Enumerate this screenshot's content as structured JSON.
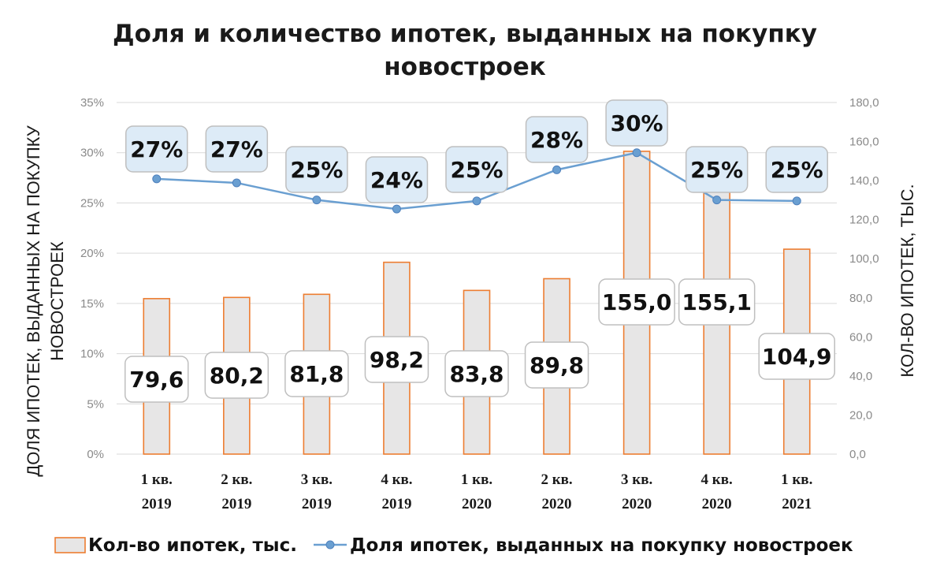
{
  "chart_data": {
    "type": "bar+line",
    "title": "Доля и количество ипотек, выданных на покупку новостроек",
    "title_lines": [
      "Доля и количество ипотек, выданных на покупку",
      "новостроек"
    ],
    "categories": [
      [
        "1 кв.",
        "2019"
      ],
      [
        "2 кв.",
        "2019"
      ],
      [
        "3 кв.",
        "2019"
      ],
      [
        "4 кв.",
        "2019"
      ],
      [
        "1 кв.",
        "2020"
      ],
      [
        "2 кв.",
        "2020"
      ],
      [
        "3 кв.",
        "2020"
      ],
      [
        "4 кв.",
        "2020"
      ],
      [
        "1 кв.",
        "2021"
      ]
    ],
    "series": [
      {
        "name": "Кол-во ипотек, тыс.",
        "type": "bar",
        "axis": "right",
        "color": "#ED7D31",
        "fill": "#E7E6E6",
        "values": [
          79.6,
          80.2,
          81.8,
          98.2,
          83.8,
          89.8,
          155.0,
          155.1,
          104.9
        ],
        "labels": [
          "79,6",
          "80,2",
          "81,8",
          "98,2",
          "83,8",
          "89,8",
          "155,0",
          "155,1",
          "104,9"
        ]
      },
      {
        "name": "Доля ипотек, выданных на покупку новостроек",
        "type": "line",
        "axis": "left",
        "color": "#6A9FD1",
        "values": [
          27.4,
          27.0,
          25.3,
          24.4,
          25.2,
          28.3,
          30.0,
          25.3,
          25.2
        ],
        "labels": [
          "27%",
          "27%",
          "25%",
          "24%",
          "25%",
          "28%",
          "30%",
          "25%",
          "25%"
        ]
      }
    ],
    "left_axis": {
      "label_lines": [
        "ДОЛЯ ИПОТЕК, ВЫДАННЫХ НА ПОКУПКУ",
        "НОВОСТРОЕК"
      ],
      "min": 0,
      "max": 35,
      "step": 5,
      "ticks": [
        "0%",
        "5%",
        "10%",
        "15%",
        "20%",
        "25%",
        "30%",
        "35%"
      ]
    },
    "right_axis": {
      "label": "КОЛ-ВО ИПОТЕК, ТЫС.",
      "min": 0,
      "max": 180,
      "step": 20,
      "ticks": [
        "0,0",
        "20,0",
        "40,0",
        "60,0",
        "80,0",
        "100,0",
        "120,0",
        "140,0",
        "160,0",
        "180,0"
      ]
    },
    "grid": true,
    "legend_position": "bottom"
  }
}
